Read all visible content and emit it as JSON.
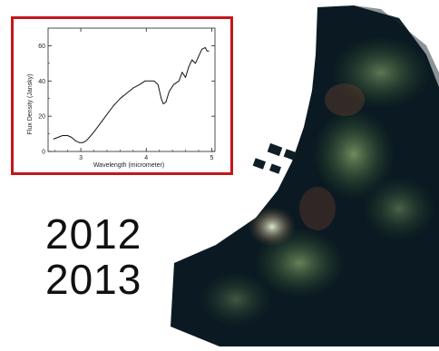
{
  "chart_data": {
    "type": "line",
    "xlabel": "Wavelength (micrometer)",
    "ylabel": "Flux Density (Jansky)",
    "xlim": [
      2.5,
      5.05
    ],
    "ylim": [
      0,
      70
    ],
    "x_ticks": [
      "3",
      "4",
      "5"
    ],
    "y_ticks": [
      "0",
      "20",
      "40",
      "60"
    ],
    "series": [
      {
        "x": [
          2.58,
          2.65,
          2.72,
          2.8,
          2.86,
          2.92,
          2.98,
          3.03,
          3.08,
          3.13,
          3.2,
          3.3,
          3.4,
          3.5,
          3.6,
          3.7,
          3.8,
          3.9,
          3.98,
          4.05,
          4.12,
          4.18,
          4.23,
          4.26,
          4.3,
          4.35,
          4.42,
          4.5,
          4.55,
          4.6,
          4.65,
          4.7,
          4.75,
          4.8,
          4.85,
          4.9,
          4.93,
          4.96
        ],
        "y": [
          7,
          8,
          9,
          9,
          8,
          6,
          5,
          5,
          6,
          8,
          11,
          16,
          21,
          26,
          30,
          33,
          36,
          38,
          40,
          40,
          40,
          38,
          30,
          27,
          28,
          34,
          38,
          40,
          45,
          42,
          48,
          52,
          50,
          54,
          58,
          59,
          57,
          57
        ]
      }
    ]
  },
  "caption": {
    "year1": "2012",
    "year2": "2013"
  },
  "colors": {
    "frame": "#c4161c",
    "line": "#111111",
    "sky": "#0b1a22"
  }
}
